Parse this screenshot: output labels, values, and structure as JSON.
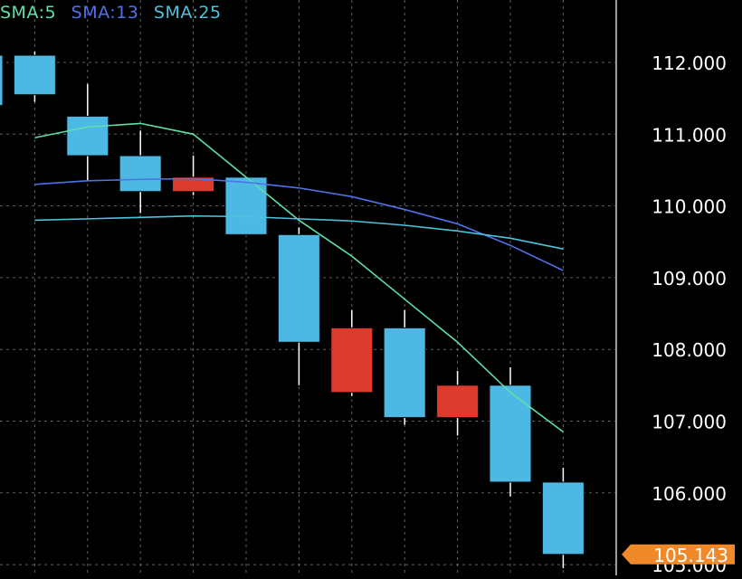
{
  "chart_data": {
    "type": "candlestick",
    "legend": {
      "placement": "top-left",
      "items": [
        {
          "label": "SMA:5",
          "color": "#5fe0a8"
        },
        {
          "label": "SMA:13",
          "color": "#4f72e8"
        },
        {
          "label": "SMA:25",
          "color": "#4cc2de"
        }
      ]
    },
    "ylim": [
      104.85,
      112.87
    ],
    "y_ticks": [
      {
        "value": 112,
        "label": "112.000"
      },
      {
        "value": 111,
        "label": "111.000"
      },
      {
        "value": 110,
        "label": "110.000"
      },
      {
        "value": 109,
        "label": "109.000"
      },
      {
        "value": 108,
        "label": "108.000"
      },
      {
        "value": 107,
        "label": "107.000"
      },
      {
        "value": 106,
        "label": "106.000"
      },
      {
        "value": 105,
        "label": "105.000"
      }
    ],
    "current_price": {
      "value": 105.143,
      "label": "105.143",
      "color": "#f08a28"
    },
    "grid": true,
    "colors": {
      "up": "#4db8e4",
      "down": "#de3b2f",
      "background": "#000000",
      "grid": "#7a7a7a",
      "axis_text": "#ffffff"
    },
    "candles": [
      {
        "open": 111.4,
        "high": 112.15,
        "low": 111.35,
        "close": 112.1
      },
      {
        "open": 111.55,
        "high": 112.15,
        "low": 111.45,
        "close": 112.1
      },
      {
        "open": 110.7,
        "high": 111.7,
        "low": 110.35,
        "close": 111.25
      },
      {
        "open": 110.2,
        "high": 111.05,
        "low": 109.9,
        "close": 110.7
      },
      {
        "open": 110.4,
        "high": 110.7,
        "low": 110.15,
        "close": 110.2
      },
      {
        "open": 109.6,
        "high": 110.4,
        "low": 109.6,
        "close": 110.4
      },
      {
        "open": 108.1,
        "high": 109.7,
        "low": 107.5,
        "close": 109.6
      },
      {
        "open": 108.3,
        "high": 108.55,
        "low": 107.35,
        "close": 107.4
      },
      {
        "open": 107.05,
        "high": 108.55,
        "low": 106.95,
        "close": 108.3
      },
      {
        "open": 107.5,
        "high": 107.7,
        "low": 106.8,
        "close": 107.05
      },
      {
        "open": 106.15,
        "high": 107.75,
        "low": 105.95,
        "close": 107.5
      },
      {
        "open": 105.143,
        "high": 106.35,
        "low": 104.95,
        "close": 106.15
      }
    ],
    "series": [
      {
        "name": "SMA:5",
        "color": "#5fe0a8",
        "values": [
          null,
          110.95,
          111.1,
          111.15,
          111.0,
          110.4,
          109.8,
          109.3,
          108.7,
          108.1,
          107.4,
          106.85
        ]
      },
      {
        "name": "SMA:13",
        "color": "#4f72e8",
        "values": [
          null,
          110.3,
          110.35,
          110.37,
          110.38,
          110.33,
          110.25,
          110.13,
          109.95,
          109.75,
          109.45,
          109.1
        ]
      },
      {
        "name": "SMA:25",
        "color": "#4cc2de",
        "values": [
          null,
          109.8,
          109.82,
          109.84,
          109.86,
          109.85,
          109.82,
          109.79,
          109.73,
          109.65,
          109.55,
          109.4
        ]
      }
    ]
  }
}
